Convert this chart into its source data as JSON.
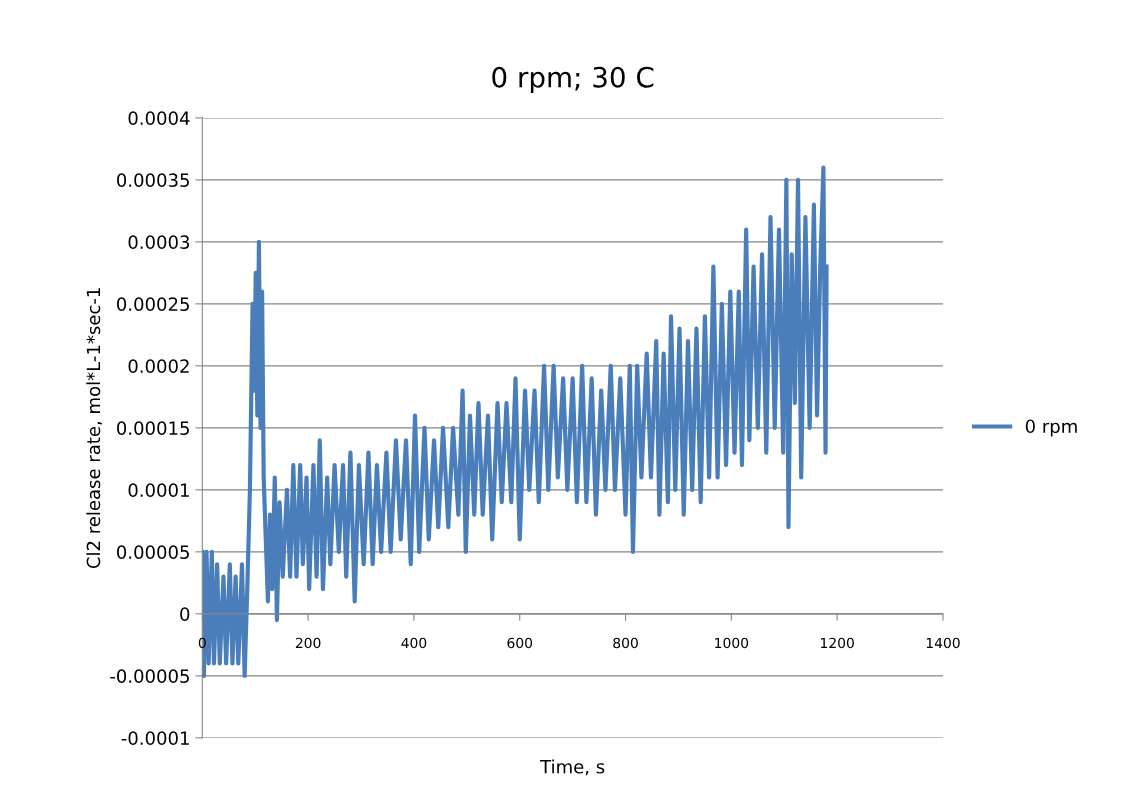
{
  "chart_data": {
    "type": "line",
    "title": "0 rpm; 30 C",
    "xlabel": "Time, s",
    "ylabel": "Cl2 release rate, mol*L-1*sec-1",
    "xlim": [
      0,
      1400
    ],
    "xticks": [
      0,
      200,
      400,
      600,
      800,
      1000,
      1200,
      1400
    ],
    "ylim": [
      -0.0001,
      0.0004
    ],
    "yticks": [
      {
        "value": -0.0001,
        "label": "-0.0001"
      },
      {
        "value": -5e-05,
        "label": "-0.00005"
      },
      {
        "value": 0,
        "label": "0"
      },
      {
        "value": 5e-05,
        "label": "0.00005"
      },
      {
        "value": 0.0001,
        "label": "0.0001"
      },
      {
        "value": 0.00015,
        "label": "0.00015"
      },
      {
        "value": 0.0002,
        "label": "0.0002"
      },
      {
        "value": 0.00025,
        "label": "0.00025"
      },
      {
        "value": 0.0003,
        "label": "0.0003"
      },
      {
        "value": 0.00035,
        "label": "0.00035"
      },
      {
        "value": 0.0004,
        "label": "0.0004"
      }
    ],
    "grid": "y",
    "legend": "right",
    "marker": "none",
    "line_style": "solid",
    "series": [
      {
        "name": "0 rpm",
        "color": "#4a7ebb",
        "x": [
          0,
          3,
          8,
          12,
          18,
          22,
          28,
          33,
          40,
          45,
          52,
          57,
          63,
          68,
          75,
          80,
          85,
          90,
          95,
          98,
          101,
          104,
          107,
          110,
          113,
          116,
          120,
          124,
          128,
          132,
          137,
          141,
          146,
          152,
          160,
          166,
          172,
          178,
          185,
          190,
          197,
          202,
          210,
          216,
          222,
          228,
          236,
          242,
          250,
          258,
          266,
          272,
          280,
          288,
          296,
          305,
          314,
          322,
          330,
          338,
          348,
          356,
          366,
          375,
          385,
          394,
          402,
          410,
          420,
          428,
          438,
          446,
          455,
          465,
          474,
          484,
          492,
          498,
          506,
          514,
          522,
          530,
          540,
          548,
          558,
          566,
          575,
          584,
          592,
          600,
          610,
          618,
          628,
          636,
          646,
          654,
          664,
          672,
          682,
          690,
          700,
          708,
          718,
          726,
          736,
          744,
          754,
          762,
          772,
          780,
          790,
          800,
          808,
          814,
          822,
          830,
          840,
          848,
          858,
          864,
          872,
          880,
          886,
          894,
          902,
          910,
          918,
          926,
          934,
          942,
          950,
          958,
          966,
          974,
          982,
          990,
          998,
          1006,
          1014,
          1020,
          1028,
          1034,
          1042,
          1050,
          1058,
          1066,
          1074,
          1082,
          1090,
          1098,
          1104,
          1108,
          1114,
          1120,
          1126,
          1132,
          1140,
          1148,
          1156,
          1162,
          1168,
          1174,
          1178,
          1180
        ],
        "values": [
          5e-05,
          -5e-05,
          5e-05,
          -4e-05,
          5e-05,
          -4e-05,
          4e-05,
          -4e-05,
          3e-05,
          -4e-05,
          4e-05,
          -4e-05,
          3e-05,
          -4e-05,
          4e-05,
          -5e-05,
          2e-05,
          0.0001,
          0.00025,
          0.00018,
          0.000275,
          0.00016,
          0.0003,
          0.00015,
          0.00026,
          0.00011,
          6e-05,
          1e-05,
          8e-05,
          2e-05,
          0.00011,
          -5e-06,
          9e-05,
          3e-05,
          0.0001,
          3e-05,
          0.00012,
          3e-05,
          0.00012,
          4e-05,
          0.00011,
          2e-05,
          0.00012,
          3e-05,
          0.00014,
          2e-05,
          0.00011,
          4e-05,
          0.00012,
          5e-05,
          0.00012,
          3e-05,
          0.00013,
          1e-05,
          0.00012,
          4e-05,
          0.00013,
          4e-05,
          0.00012,
          5e-05,
          0.00013,
          5e-05,
          0.00014,
          6e-05,
          0.00014,
          4e-05,
          0.00016,
          5e-05,
          0.00015,
          6e-05,
          0.00014,
          7e-05,
          0.00015,
          7e-05,
          0.00015,
          8e-05,
          0.00018,
          5e-05,
          0.00016,
          8e-05,
          0.00017,
          8e-05,
          0.00016,
          6e-05,
          0.00017,
          9e-05,
          0.00017,
          9e-05,
          0.00019,
          6e-05,
          0.00018,
          0.0001,
          0.00018,
          9e-05,
          0.0002,
          0.0001,
          0.0002,
          0.00011,
          0.00019,
          0.0001,
          0.00019,
          9e-05,
          0.0002,
          9e-05,
          0.00019,
          8e-05,
          0.00018,
          0.0001,
          0.0002,
          0.0001,
          0.00019,
          8e-05,
          0.0002,
          5e-05,
          0.0002,
          0.00011,
          0.00021,
          0.00011,
          0.00022,
          8e-05,
          0.00021,
          9e-05,
          0.00024,
          0.0001,
          0.00023,
          8e-05,
          0.00022,
          0.0001,
          0.00023,
          9e-05,
          0.00024,
          0.00011,
          0.00028,
          0.00011,
          0.00025,
          0.00012,
          0.00026,
          0.00013,
          0.00026,
          0.00012,
          0.00031,
          0.00014,
          0.00028,
          0.00015,
          0.00029,
          0.00013,
          0.00032,
          0.00015,
          0.00031,
          0.00013,
          0.00035,
          7e-05,
          0.00029,
          0.00017,
          0.00035,
          0.00011,
          0.00032,
          0.00015,
          0.00033,
          0.00016,
          0.00028,
          0.00036,
          0.00013,
          0.00028
        ]
      }
    ]
  }
}
